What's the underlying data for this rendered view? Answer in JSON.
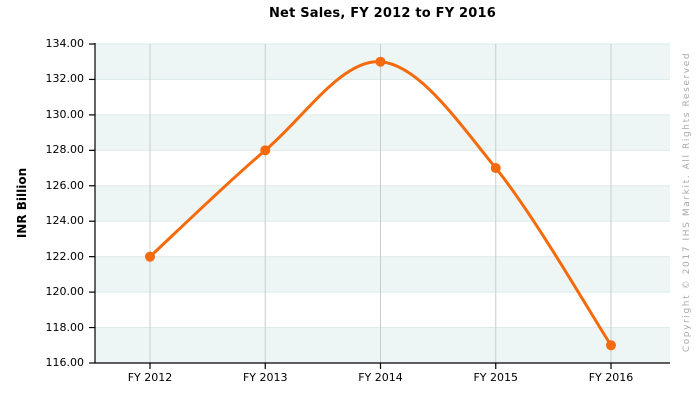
{
  "chart_data": {
    "type": "line",
    "title": "Net Sales, FY 2012 to FY 2016",
    "xlabel": "",
    "ylabel": "INR Billion",
    "categories": [
      "FY 2012",
      "FY 2013",
      "FY 2014",
      "FY 2015",
      "FY 2016"
    ],
    "values": [
      122,
      128,
      133,
      127,
      117
    ],
    "ylim": [
      116,
      134
    ],
    "ytick_step": 2,
    "ytick_labels": [
      "116.00",
      "118.00",
      "120.00",
      "122.00",
      "124.00",
      "126.00",
      "128.00",
      "130.00",
      "132.00",
      "134.00"
    ],
    "legend": "none",
    "grid": true,
    "line_smooth": true,
    "colors": {
      "line": "#f56a0d",
      "marker": "#f56a0d",
      "band_tint": "#edf6f4",
      "band_alt": "#ffffff",
      "band_edge_line": "#ddecea",
      "vertical_grid": "#c5cdcc",
      "axis": "#000000",
      "tick_text": "#000000",
      "copyright_text": "#a9a9a9"
    }
  },
  "footer": {
    "copyright": "Copyright © 2017 IHS Markit. All Rights Reserved"
  }
}
